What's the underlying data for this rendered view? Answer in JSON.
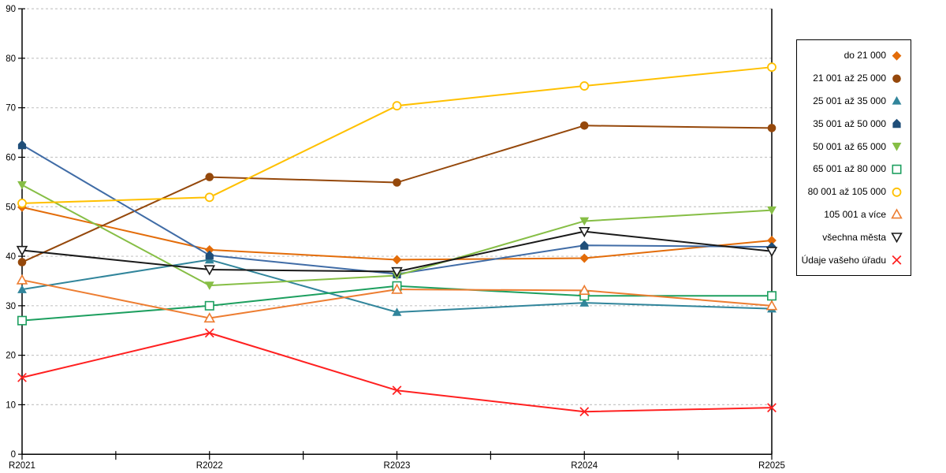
{
  "chart_data": {
    "type": "line",
    "title": "",
    "xlabel": "",
    "ylabel": "",
    "categories": [
      "R2021",
      "R2022",
      "R2023",
      "R2024",
      "R2025"
    ],
    "ylim": [
      0,
      90
    ],
    "ytick_step": 10,
    "grid": "horizontal-dashed",
    "legend_position": "right",
    "series": [
      {
        "name": "do 21 000",
        "marker": "diamond",
        "marker_style": "filled",
        "color": "#E36C09",
        "values": [
          49.9,
          41.3,
          39.3,
          39.6,
          43.2
        ]
      },
      {
        "name": "21 001 až 25 000",
        "marker": "circle",
        "marker_style": "filled",
        "color": "#95480B",
        "values": [
          38.8,
          56.0,
          54.9,
          66.4,
          65.9
        ]
      },
      {
        "name": "25 001 až 35 000",
        "marker": "triangle-up",
        "marker_style": "filled",
        "color": "#31859B",
        "values": [
          33.3,
          39.3,
          28.7,
          30.6,
          29.4
        ]
      },
      {
        "name": "35 001 až 50 000",
        "marker": "pentagon",
        "marker_style": "filled",
        "color": "#406CA6",
        "marker_color": "#1F4E79",
        "values": [
          62.5,
          40.2,
          36.4,
          42.2,
          41.9
        ]
      },
      {
        "name": "50 001 až 65 000",
        "marker": "triangle-down",
        "marker_style": "filled",
        "color": "#86BE45",
        "values": [
          54.4,
          34.1,
          36.1,
          47.1,
          49.3
        ]
      },
      {
        "name": "65 001 až 80 000",
        "marker": "square",
        "marker_style": "hollow",
        "color": "#1D9F5F",
        "values": [
          27.0,
          30.0,
          34.0,
          32.0,
          32.0
        ]
      },
      {
        "name": "80 001 až 105 000",
        "marker": "circle",
        "marker_style": "hollow",
        "color": "#FFC000",
        "values": [
          50.7,
          51.9,
          70.4,
          74.4,
          78.2
        ]
      },
      {
        "name": "105 001 a více",
        "marker": "triangle-up",
        "marker_style": "hollow",
        "color": "#ED7D31",
        "values": [
          35.2,
          27.5,
          33.3,
          33.1,
          30.0
        ]
      },
      {
        "name": "všechna města",
        "marker": "triangle-down",
        "marker_style": "hollow",
        "color": "#1A1A1A",
        "values": [
          41.2,
          37.3,
          36.9,
          45.0,
          41.0
        ]
      },
      {
        "name": "Údaje vašeho úřadu",
        "marker": "x",
        "marker_style": "line",
        "color": "#FF2020",
        "values": [
          15.5,
          24.5,
          12.9,
          8.6,
          9.4
        ]
      }
    ]
  },
  "axis": {
    "y_ticks": [
      "0",
      "10",
      "20",
      "30",
      "40",
      "50",
      "60",
      "70",
      "80",
      "90"
    ],
    "x_ticks": [
      "R2021",
      "R2022",
      "R2023",
      "R2024",
      "R2025"
    ]
  },
  "colors": {
    "grid": "#C7C7C7",
    "axis": "#000000",
    "background": "#FFFFFF",
    "legend_border": "#000000"
  }
}
